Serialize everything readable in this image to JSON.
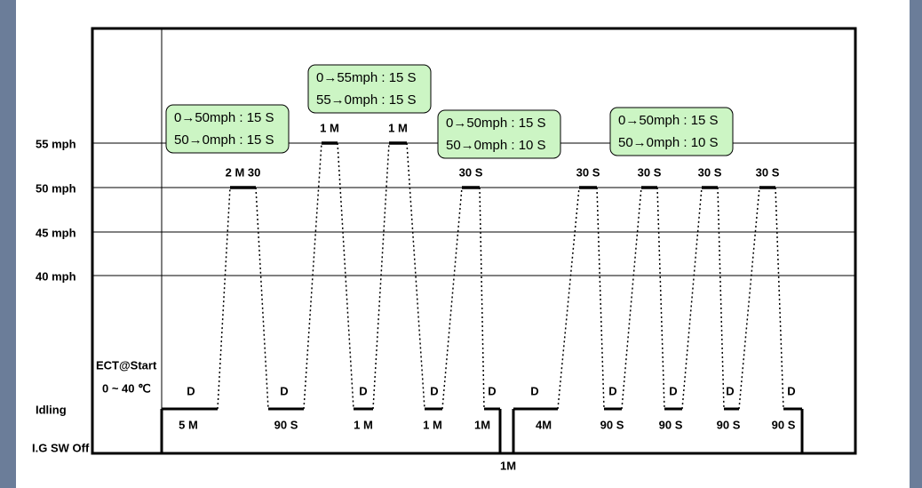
{
  "axis_labels": [
    "55 mph",
    "50 mph",
    "45 mph",
    "40 mph",
    "Idling",
    "I.G SW Off"
  ],
  "ect": {
    "title": "ECT@Start",
    "range": "0 ~ 40 ℃"
  },
  "plateau_labels": [
    "2 M 30",
    "1 M",
    "1 M",
    "30 S",
    "30 S",
    "30 S",
    "30 S",
    "30 S"
  ],
  "idle_labels": [
    "5 M",
    "90 S",
    "1 M",
    "1 M",
    "1M",
    "4M",
    "90 S",
    "90 S",
    "90 S",
    "90 S"
  ],
  "gear_labels": [
    "D",
    "D",
    "D",
    "D",
    "D",
    "D",
    "D",
    "D",
    "D",
    "D"
  ],
  "off_label": "1M",
  "notes": [
    {
      "lines": [
        "0→50mph : 15 S",
        "50→0mph : 15 S"
      ]
    },
    {
      "lines": [
        "0→55mph : 15 S",
        "55→0mph : 15 S"
      ]
    },
    {
      "lines": [
        "0→50mph : 15 S",
        "50→0mph : 10 S"
      ]
    },
    {
      "lines": [
        "0→50mph : 15 S",
        "50→0mph : 10 S"
      ]
    }
  ]
}
